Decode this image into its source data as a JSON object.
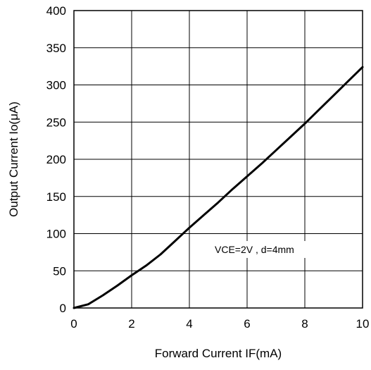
{
  "chart_data": {
    "type": "line",
    "xlabel": "Forward Current IF(mA)",
    "ylabel": "Output Current Io(μA)",
    "xlim": [
      0,
      10
    ],
    "ylim": [
      0,
      400
    ],
    "xticks": [
      "0",
      "2",
      "4",
      "6",
      "8",
      "10"
    ],
    "yticks": [
      "0",
      "50",
      "100",
      "150",
      "200",
      "250",
      "300",
      "350",
      "400"
    ],
    "grid": true,
    "annotation": "VCE=2V , d=4mm",
    "series": [
      {
        "x": [
          0,
          0.5,
          1,
          1.5,
          2,
          2.5,
          3,
          3.5,
          4,
          4.5,
          5,
          5.5,
          6,
          6.5,
          7,
          7.5,
          8,
          8.5,
          9,
          9.5,
          10
        ],
        "y": [
          0,
          5,
          17,
          30,
          44,
          57,
          72,
          90,
          108,
          125,
          142,
          160,
          177,
          194,
          212,
          230,
          248,
          267,
          286,
          305,
          324
        ]
      }
    ]
  }
}
